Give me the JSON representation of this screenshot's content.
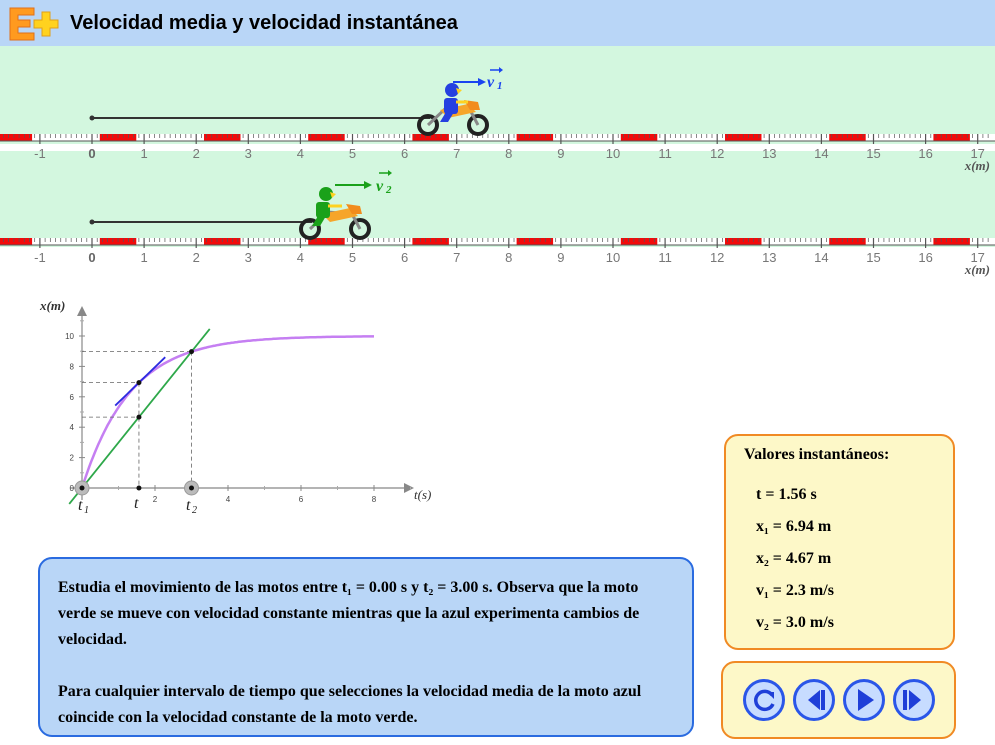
{
  "app": {
    "title": "Velocidad media y velocidad instantánea"
  },
  "track": {
    "tick_labels": [
      "-1",
      "0",
      "1",
      "2",
      "3",
      "4",
      "5",
      "6",
      "7",
      "8",
      "9",
      "10",
      "11",
      "12",
      "13",
      "14",
      "15",
      "16",
      "17"
    ],
    "axis_label": "x(m)",
    "bike1_vector_label": "v",
    "bike1_vector_sub": "1",
    "bike2_vector_label": "v",
    "bike2_vector_sub": "2",
    "bike1_position_m": 6.94,
    "bike2_position_m": 4.67,
    "bike1_color": "#2540e0",
    "bike2_color": "#1aa11a"
  },
  "graph": {
    "y_axis_label": "x(m)",
    "x_axis_label": "t(s)",
    "y_ticks": [
      "0",
      "2",
      "4",
      "6",
      "8",
      "10"
    ],
    "x_ticks": [
      "2",
      "4",
      "6",
      "8"
    ],
    "t1_label": "t",
    "t1_sub": "1",
    "t_label": "t",
    "t2_label": "t",
    "t2_sub": "2",
    "curve_color": "#c57ff2",
    "secant_color": "#2ea84a",
    "tangent_color": "#2b2be0"
  },
  "chart_data": {
    "type": "line",
    "xlabel": "t(s)",
    "ylabel": "x(m)",
    "xlim": [
      0,
      9
    ],
    "ylim": [
      0,
      11
    ],
    "series": [
      {
        "values_x": [
          0,
          0.5,
          1,
          1.56,
          2,
          2.5,
          3,
          4,
          5,
          6,
          7,
          8
        ],
        "values_y": [
          0,
          3.4,
          5.4,
          6.94,
          7.8,
          8.5,
          9.0,
          9.6,
          9.85,
          9.95,
          10.0,
          10.0
        ]
      },
      {
        "values_x": [
          0,
          3
        ],
        "values_y": [
          0,
          9.0
        ]
      }
    ],
    "markers": {
      "t1": 0.0,
      "t": 1.56,
      "t2": 3.0
    }
  },
  "description": {
    "paragraph1": "Estudia el movimiento de las motos entre t₁ = 0.00 s y t₂ = 3.00 s. Observa que la moto verde se mueve con velocidad constante mientras que la azul experimenta cambios de velocidad.",
    "paragraph2": "Para cualquier intervalo de tiempo que selecciones la velocidad media de la moto azul coincide con la velocidad constante de la moto verde."
  },
  "values_panel": {
    "title": "Valores instantáneos:",
    "t": "t = 1.56 s",
    "x1": "x₁ = 6.94 m",
    "x2": "x₂ = 4.67 m",
    "v1": "v₁ = 2.3 m/s",
    "v2": "v₂ = 3.0 m/s"
  },
  "controls": {
    "reset_icon": "reset-icon",
    "step_back_icon": "step-back-icon",
    "play_icon": "play-icon",
    "step_forward_icon": "step-forward-icon"
  }
}
